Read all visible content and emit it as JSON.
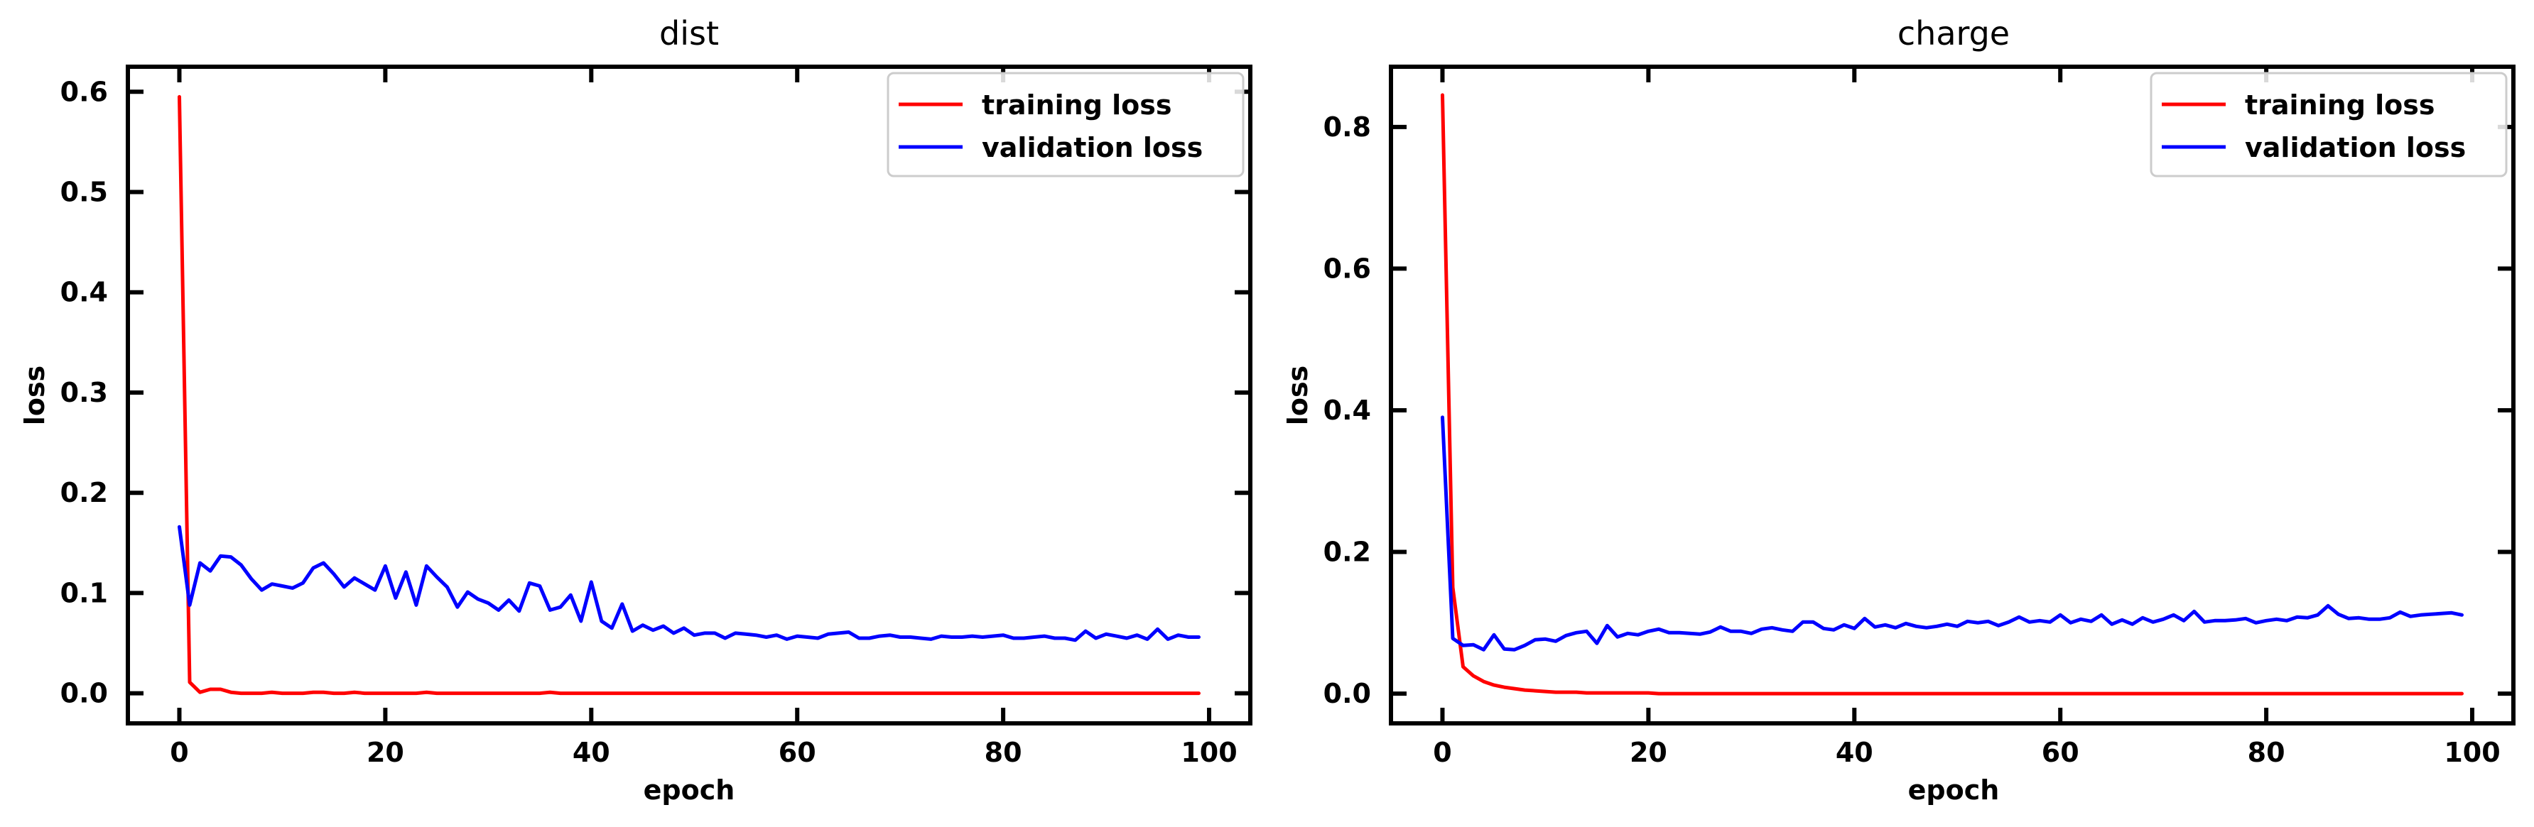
{
  "chart_data": [
    {
      "type": "line",
      "title": "dist",
      "xlabel": "epoch",
      "ylabel": "loss",
      "xlim": [
        -5,
        104
      ],
      "ylim": [
        -0.03,
        0.625
      ],
      "xticks": [
        0,
        20,
        40,
        60,
        80,
        100
      ],
      "yticks": [
        0.0,
        0.1,
        0.2,
        0.3,
        0.4,
        0.5,
        0.6
      ],
      "xtick_labels": [
        "0",
        "20",
        "40",
        "60",
        "80",
        "100"
      ],
      "ytick_labels": [
        "0.0",
        "0.1",
        "0.2",
        "0.3",
        "0.4",
        "0.5",
        "0.6"
      ],
      "grid": false,
      "legend_position": "top-right",
      "series": [
        {
          "name": "training loss",
          "color": "#ff0000",
          "x": [
            0,
            1,
            2,
            3,
            4,
            5,
            6,
            7,
            8,
            9,
            10,
            11,
            12,
            13,
            14,
            15,
            16,
            17,
            18,
            19,
            20,
            21,
            22,
            23,
            24,
            25,
            26,
            27,
            28,
            29,
            30,
            31,
            32,
            33,
            34,
            35,
            36,
            37,
            38,
            39,
            40,
            41,
            42,
            43,
            44,
            45,
            46,
            47,
            48,
            49,
            50,
            51,
            52,
            53,
            54,
            55,
            56,
            57,
            58,
            59,
            60,
            61,
            62,
            63,
            64,
            65,
            66,
            67,
            68,
            69,
            70,
            71,
            72,
            73,
            74,
            75,
            76,
            77,
            78,
            79,
            80,
            81,
            82,
            83,
            84,
            85,
            86,
            87,
            88,
            89,
            90,
            91,
            92,
            93,
            94,
            95,
            96,
            97,
            98,
            99
          ],
          "y": [
            0.595,
            0.011,
            0.001,
            0.004,
            0.004,
            0.001,
            0.0,
            0.0,
            0.0,
            0.001,
            0.0,
            0.0,
            0.0,
            0.001,
            0.001,
            0.0,
            0.0,
            0.001,
            0.0,
            0.0,
            0.0,
            0.0,
            0.0,
            0.0,
            0.001,
            0.0,
            0.0,
            0.0,
            0.0,
            0.0,
            0.0,
            0.0,
            0.0,
            0.0,
            0.0,
            0.0,
            0.001,
            0.0,
            0.0,
            0.0,
            0.0,
            0.0,
            0.0,
            0.0,
            0.0,
            0.0,
            0.0,
            0.0,
            0.0,
            0.0,
            0.0,
            0.0,
            0.0,
            0.0,
            0.0,
            0.0,
            0.0,
            0.0,
            0.0,
            0.0,
            0.0,
            0.0,
            0.0,
            0.0,
            0.0,
            0.0,
            0.0,
            0.0,
            0.0,
            0.0,
            0.0,
            0.0,
            0.0,
            0.0,
            0.0,
            0.0,
            0.0,
            0.0,
            0.0,
            0.0,
            0.0,
            0.0,
            0.0,
            0.0,
            0.0,
            0.0,
            0.0,
            0.0,
            0.0,
            0.0,
            0.0,
            0.0,
            0.0,
            0.0,
            0.0,
            0.0,
            0.0,
            0.0,
            0.0,
            0.0
          ]
        },
        {
          "name": "validation loss",
          "color": "#0000ff",
          "x": [
            0,
            1,
            2,
            3,
            4,
            5,
            6,
            7,
            8,
            9,
            10,
            11,
            12,
            13,
            14,
            15,
            16,
            17,
            18,
            19,
            20,
            21,
            22,
            23,
            24,
            25,
            26,
            27,
            28,
            29,
            30,
            31,
            32,
            33,
            34,
            35,
            36,
            37,
            38,
            39,
            40,
            41,
            42,
            43,
            44,
            45,
            46,
            47,
            48,
            49,
            50,
            51,
            52,
            53,
            54,
            55,
            56,
            57,
            58,
            59,
            60,
            61,
            62,
            63,
            64,
            65,
            66,
            67,
            68,
            69,
            70,
            71,
            72,
            73,
            74,
            75,
            76,
            77,
            78,
            79,
            80,
            81,
            82,
            83,
            84,
            85,
            86,
            87,
            88,
            89,
            90,
            91,
            92,
            93,
            94,
            95,
            96,
            97,
            98,
            99
          ],
          "y": [
            0.166,
            0.088,
            0.13,
            0.122,
            0.137,
            0.136,
            0.128,
            0.114,
            0.103,
            0.109,
            0.107,
            0.105,
            0.11,
            0.125,
            0.13,
            0.119,
            0.106,
            0.115,
            0.109,
            0.103,
            0.127,
            0.095,
            0.121,
            0.088,
            0.127,
            0.116,
            0.106,
            0.086,
            0.101,
            0.094,
            0.09,
            0.083,
            0.093,
            0.082,
            0.11,
            0.107,
            0.083,
            0.086,
            0.098,
            0.072,
            0.111,
            0.072,
            0.065,
            0.089,
            0.062,
            0.068,
            0.063,
            0.067,
            0.06,
            0.065,
            0.058,
            0.06,
            0.06,
            0.055,
            0.06,
            0.059,
            0.058,
            0.056,
            0.058,
            0.054,
            0.057,
            0.056,
            0.055,
            0.059,
            0.06,
            0.061,
            0.055,
            0.055,
            0.057,
            0.058,
            0.056,
            0.056,
            0.055,
            0.054,
            0.057,
            0.056,
            0.056,
            0.057,
            0.056,
            0.057,
            0.058,
            0.055,
            0.055,
            0.056,
            0.057,
            0.055,
            0.055,
            0.053,
            0.062,
            0.055,
            0.059,
            0.057,
            0.055,
            0.058,
            0.054,
            0.064,
            0.054,
            0.058,
            0.056,
            0.056
          ]
        }
      ]
    },
    {
      "type": "line",
      "title": "charge",
      "xlabel": "epoch",
      "ylabel": "loss",
      "xlim": [
        -5,
        104
      ],
      "ylim": [
        -0.042,
        0.885
      ],
      "xticks": [
        0,
        20,
        40,
        60,
        80,
        100
      ],
      "yticks": [
        0.0,
        0.2,
        0.4,
        0.6,
        0.8
      ],
      "xtick_labels": [
        "0",
        "20",
        "40",
        "60",
        "80",
        "100"
      ],
      "ytick_labels": [
        "0.0",
        "0.2",
        "0.4",
        "0.6",
        "0.8"
      ],
      "grid": false,
      "legend_position": "top-right",
      "series": [
        {
          "name": "training loss",
          "color": "#ff0000",
          "x": [
            0,
            1,
            2,
            3,
            4,
            5,
            6,
            7,
            8,
            9,
            10,
            11,
            12,
            13,
            14,
            15,
            16,
            17,
            18,
            19,
            20,
            21,
            22,
            23,
            24,
            25,
            26,
            27,
            28,
            29,
            30,
            31,
            32,
            33,
            34,
            35,
            36,
            37,
            38,
            39,
            40,
            41,
            42,
            43,
            44,
            45,
            46,
            47,
            48,
            49,
            50,
            51,
            52,
            53,
            54,
            55,
            56,
            57,
            58,
            59,
            60,
            61,
            62,
            63,
            64,
            65,
            66,
            67,
            68,
            69,
            70,
            71,
            72,
            73,
            74,
            75,
            76,
            77,
            78,
            79,
            80,
            81,
            82,
            83,
            84,
            85,
            86,
            87,
            88,
            89,
            90,
            91,
            92,
            93,
            94,
            95,
            96,
            97,
            98,
            99
          ],
          "y": [
            0.845,
            0.15,
            0.038,
            0.025,
            0.017,
            0.012,
            0.009,
            0.007,
            0.005,
            0.004,
            0.003,
            0.002,
            0.002,
            0.002,
            0.001,
            0.001,
            0.001,
            0.001,
            0.001,
            0.001,
            0.001,
            0.0,
            0.0,
            0.0,
            0.0,
            0.0,
            0.0,
            0.0,
            0.0,
            0.0,
            0.0,
            0.0,
            0.0,
            0.0,
            0.0,
            0.0,
            0.0,
            0.0,
            0.0,
            0.0,
            0.0,
            0.0,
            0.0,
            0.0,
            0.0,
            0.0,
            0.0,
            0.0,
            0.0,
            0.0,
            0.0,
            0.0,
            0.0,
            0.0,
            0.0,
            0.0,
            0.0,
            0.0,
            0.0,
            0.0,
            0.0,
            0.0,
            0.0,
            0.0,
            0.0,
            0.0,
            0.0,
            0.0,
            0.0,
            0.0,
            0.0,
            0.0,
            0.0,
            0.0,
            0.0,
            0.0,
            0.0,
            0.0,
            0.0,
            0.0,
            0.0,
            0.0,
            0.0,
            0.0,
            0.0,
            0.0,
            0.0,
            0.0,
            0.0,
            0.0,
            0.0,
            0.0,
            0.0,
            0.0,
            0.0,
            0.0,
            0.0,
            0.0,
            0.0,
            0.0
          ]
        },
        {
          "name": "validation loss",
          "color": "#0000ff",
          "x": [
            0,
            1,
            2,
            3,
            4,
            5,
            6,
            7,
            8,
            9,
            10,
            11,
            12,
            13,
            14,
            15,
            16,
            17,
            18,
            19,
            20,
            21,
            22,
            23,
            24,
            25,
            26,
            27,
            28,
            29,
            30,
            31,
            32,
            33,
            34,
            35,
            36,
            37,
            38,
            39,
            40,
            41,
            42,
            43,
            44,
            45,
            46,
            47,
            48,
            49,
            50,
            51,
            52,
            53,
            54,
            55,
            56,
            57,
            58,
            59,
            60,
            61,
            62,
            63,
            64,
            65,
            66,
            67,
            68,
            69,
            70,
            71,
            72,
            73,
            74,
            75,
            76,
            77,
            78,
            79,
            80,
            81,
            82,
            83,
            84,
            85,
            86,
            87,
            88,
            89,
            90,
            91,
            92,
            93,
            94,
            95,
            96,
            97,
            98,
            99
          ],
          "y": [
            0.39,
            0.078,
            0.068,
            0.069,
            0.062,
            0.083,
            0.063,
            0.062,
            0.068,
            0.076,
            0.077,
            0.074,
            0.082,
            0.086,
            0.088,
            0.071,
            0.096,
            0.08,
            0.085,
            0.083,
            0.088,
            0.091,
            0.086,
            0.086,
            0.085,
            0.084,
            0.087,
            0.094,
            0.088,
            0.088,
            0.085,
            0.091,
            0.093,
            0.09,
            0.088,
            0.101,
            0.101,
            0.092,
            0.09,
            0.097,
            0.092,
            0.106,
            0.094,
            0.097,
            0.093,
            0.099,
            0.095,
            0.093,
            0.095,
            0.098,
            0.095,
            0.102,
            0.1,
            0.102,
            0.096,
            0.101,
            0.108,
            0.101,
            0.103,
            0.101,
            0.111,
            0.1,
            0.105,
            0.102,
            0.111,
            0.098,
            0.104,
            0.098,
            0.107,
            0.101,
            0.105,
            0.111,
            0.103,
            0.116,
            0.101,
            0.103,
            0.103,
            0.104,
            0.106,
            0.1,
            0.103,
            0.105,
            0.103,
            0.108,
            0.107,
            0.111,
            0.124,
            0.112,
            0.106,
            0.107,
            0.105,
            0.105,
            0.107,
            0.115,
            0.109,
            0.111,
            0.112,
            0.113,
            0.114,
            0.111
          ]
        }
      ]
    }
  ]
}
